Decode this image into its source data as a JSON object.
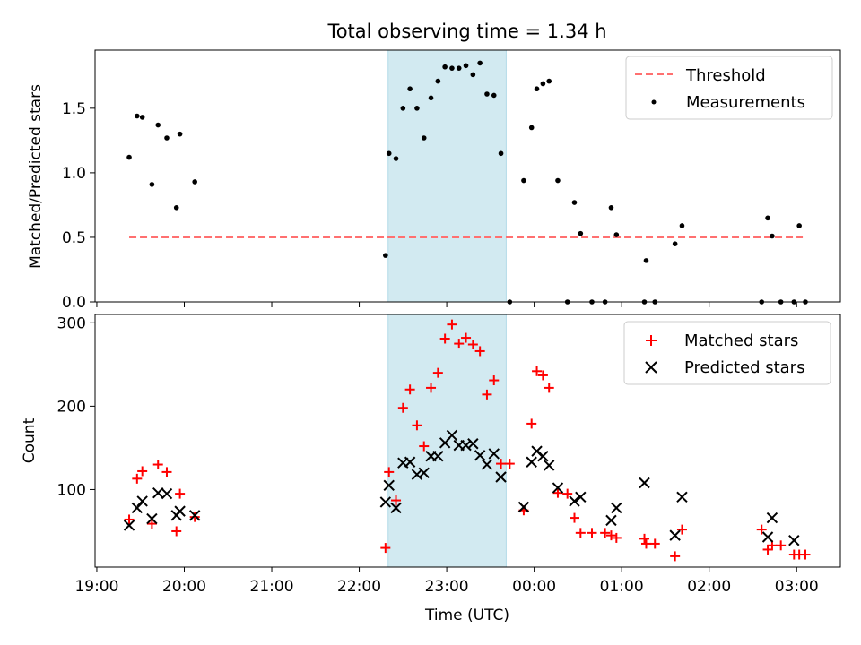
{
  "chart_data": [
    {
      "type": "scatter",
      "title": "Total observing time = 1.34 h",
      "xlabel": "",
      "ylabel": "Matched/Predicted stars",
      "xlim": [
        18.98,
        27.5
      ],
      "ylim": [
        0,
        1.95
      ],
      "yticks": [
        0.0,
        0.5,
        1.0,
        1.5
      ],
      "ytick_labels": [
        "0.0",
        "0.5",
        "1.0",
        "1.5"
      ],
      "shaded_span": [
        22.33,
        23.68
      ],
      "shaded_color": "#add8e6",
      "legend_position": "upper right",
      "threshold": {
        "name": "Threshold",
        "value": 0.5,
        "x_range": [
          19.37,
          27.07
        ],
        "color": "#ff7070",
        "style": "dashed"
      },
      "series": [
        {
          "name": "Measurements",
          "color": "#000000",
          "marker": "dot",
          "x": [
            19.37,
            19.46,
            19.52,
            19.63,
            19.7,
            19.8,
            19.91,
            19.95,
            20.12,
            22.3,
            22.34,
            22.42,
            22.5,
            22.58,
            22.66,
            22.74,
            22.82,
            22.9,
            22.98,
            23.06,
            23.14,
            23.22,
            23.3,
            23.38,
            23.46,
            23.54,
            23.62,
            23.72,
            23.88,
            23.97,
            24.03,
            24.1,
            24.17,
            24.27,
            24.38,
            24.46,
            24.53,
            24.66,
            24.81,
            24.88,
            24.94,
            25.26,
            25.28,
            25.38,
            25.61,
            25.69,
            26.6,
            26.67,
            26.72,
            26.82,
            26.97,
            27.03,
            27.1
          ],
          "values": [
            1.12,
            1.44,
            1.43,
            0.91,
            1.37,
            1.27,
            0.73,
            1.3,
            0.93,
            0.36,
            1.15,
            1.11,
            1.5,
            1.65,
            1.5,
            1.27,
            1.58,
            1.71,
            1.82,
            1.81,
            1.81,
            1.83,
            1.76,
            1.85,
            1.61,
            1.6,
            1.15,
            0.0,
            0.94,
            1.35,
            1.65,
            1.69,
            1.71,
            0.94,
            0.0,
            0.77,
            0.53,
            0.0,
            0.0,
            0.73,
            0.52,
            0.0,
            0.32,
            0.0,
            0.45,
            0.59,
            0.0,
            0.65,
            0.51,
            0.0,
            0.0,
            0.59,
            0.0
          ]
        }
      ]
    },
    {
      "type": "scatter",
      "title": "",
      "xlabel": "Time (UTC)",
      "ylabel": "Count",
      "xlim": [
        18.98,
        27.5
      ],
      "ylim": [
        7,
        310
      ],
      "yticks": [
        100,
        200,
        300
      ],
      "ytick_labels": [
        "100",
        "200",
        "300"
      ],
      "xticks": [
        19,
        20,
        21,
        22,
        23,
        24,
        25,
        26,
        27
      ],
      "xtick_labels": [
        "19:00",
        "20:00",
        "21:00",
        "22:00",
        "23:00",
        "00:00",
        "01:00",
        "02:00",
        "03:00"
      ],
      "shaded_span": [
        22.33,
        23.68
      ],
      "shaded_color": "#add8e6",
      "legend_position": "upper right",
      "series": [
        {
          "name": "Matched stars",
          "color": "#ff0000",
          "marker": "plus",
          "x": [
            19.37,
            19.46,
            19.52,
            19.63,
            19.7,
            19.8,
            19.91,
            19.95,
            20.12,
            22.3,
            22.34,
            22.42,
            22.5,
            22.58,
            22.66,
            22.74,
            22.82,
            22.9,
            22.98,
            23.06,
            23.14,
            23.22,
            23.3,
            23.38,
            23.46,
            23.54,
            23.62,
            23.72,
            23.88,
            23.97,
            24.03,
            24.1,
            24.17,
            24.27,
            24.38,
            24.46,
            24.53,
            24.66,
            24.81,
            24.88,
            24.94,
            25.26,
            25.28,
            25.38,
            25.61,
            25.69,
            26.6,
            26.67,
            26.72,
            26.82,
            26.97,
            27.03,
            27.1
          ],
          "values": [
            64,
            113,
            122,
            59,
            130,
            121,
            50,
            95,
            67,
            30,
            121,
            87,
            198,
            220,
            177,
            152,
            222,
            240,
            281,
            298,
            275,
            282,
            274,
            266,
            214,
            231,
            131,
            131,
            75,
            179,
            242,
            237,
            222,
            96,
            95,
            66,
            48,
            48,
            48,
            45,
            42,
            41,
            35,
            35,
            20,
            52,
            52,
            28,
            33,
            33,
            22,
            22,
            22
          ]
        },
        {
          "name": "Predicted stars",
          "color": "#000000",
          "marker": "x",
          "x": [
            19.37,
            19.46,
            19.52,
            19.63,
            19.7,
            19.8,
            19.91,
            19.95,
            20.12,
            22.3,
            22.34,
            22.42,
            22.5,
            22.58,
            22.66,
            22.74,
            22.82,
            22.9,
            22.98,
            23.06,
            23.14,
            23.22,
            23.3,
            23.38,
            23.46,
            23.54,
            23.62,
            23.88,
            23.97,
            24.03,
            24.1,
            24.17,
            24.27,
            24.46,
            24.53,
            24.88,
            24.94,
            25.26,
            25.61,
            25.69,
            26.67,
            26.72,
            26.97
          ],
          "values": [
            57,
            78,
            86,
            65,
            96,
            95,
            69,
            74,
            69,
            85,
            105,
            78,
            132,
            133,
            118,
            120,
            140,
            140,
            156,
            165,
            153,
            153,
            155,
            141,
            130,
            143,
            115,
            79,
            133,
            146,
            140,
            129,
            102,
            86,
            91,
            63,
            78,
            108,
            45,
            91,
            43,
            66,
            39
          ]
        }
      ]
    }
  ]
}
